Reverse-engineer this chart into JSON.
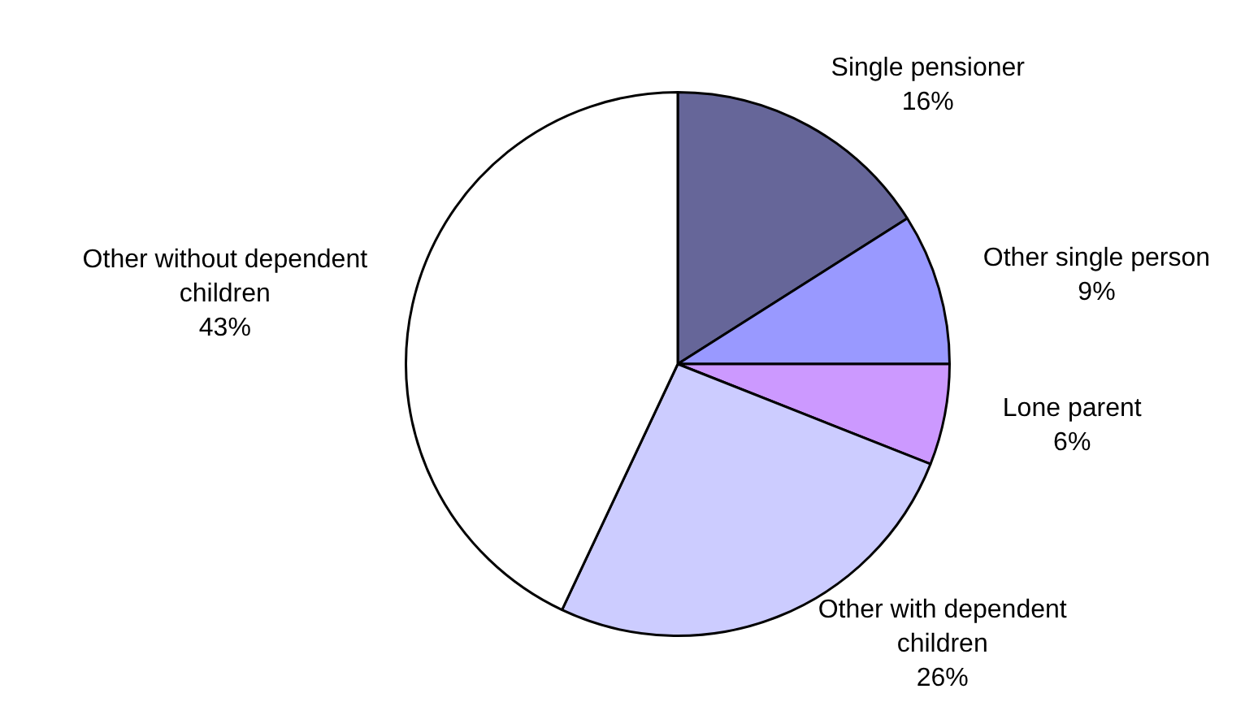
{
  "chart_data": {
    "type": "pie",
    "categories": [
      "Single pensioner",
      "Other single person",
      "Lone parent",
      "Other with dependent children",
      "Other without dependent children"
    ],
    "values": [
      16,
      9,
      6,
      26,
      43
    ],
    "colors": [
      "#666699",
      "#9999ff",
      "#cc99ff",
      "#ccccff",
      "#ffffff"
    ],
    "value_labels": [
      "16%",
      "9%",
      "6%",
      "26%",
      "43%"
    ],
    "legend": false
  }
}
